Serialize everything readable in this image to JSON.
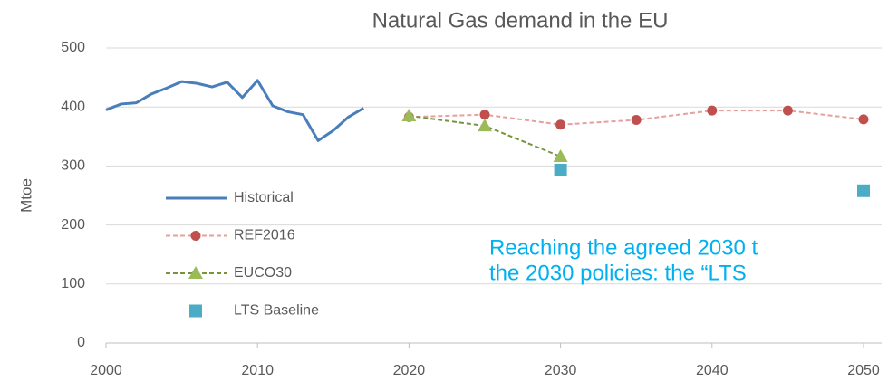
{
  "chart_data": {
    "type": "line",
    "title": "Natural Gas demand in the EU",
    "y_label": "Mtoe",
    "xlim": [
      2000,
      2050
    ],
    "xticks": [
      2000,
      2010,
      2020,
      2030,
      2040,
      2050
    ],
    "ylim": [
      0,
      500
    ],
    "yticks": [
      0,
      100,
      200,
      300,
      400,
      500
    ],
    "grid": true,
    "legend": "center-left",
    "series": [
      {
        "name": "Historical",
        "color": "#4a7ebb",
        "style": "solid",
        "x": [
          2000,
          2001,
          2002,
          2003,
          2004,
          2005,
          2006,
          2007,
          2008,
          2009,
          2010,
          2011,
          2012,
          2013,
          2014,
          2015,
          2016,
          2017
        ],
        "values": [
          395,
          405,
          407,
          422,
          432,
          443,
          440,
          434,
          442,
          416,
          445,
          402,
          392,
          387,
          343,
          360,
          383,
          398
        ]
      },
      {
        "name": "REF2016",
        "color": "#c0504d",
        "line_color": "#e6a09e",
        "style": "dashed",
        "marker": "circle",
        "x": [
          2020,
          2025,
          2030,
          2035,
          2040,
          2045,
          2050
        ],
        "values": [
          383,
          387,
          370,
          378,
          394,
          394,
          379
        ]
      },
      {
        "name": "EUCO30",
        "color": "#9bbb59",
        "line_color": "#77933c",
        "style": "dashed",
        "marker": "triangle",
        "x": [
          2020,
          2025,
          2030
        ],
        "values": [
          385,
          368,
          316
        ]
      },
      {
        "name": "LTS Baseline",
        "color": "#4bacc6",
        "style": "none",
        "marker": "square",
        "x": [
          2030,
          2050
        ],
        "values": [
          293,
          258
        ]
      }
    ],
    "annotation": {
      "color": "#00b0f0",
      "lines": [
        "Reaching the agreed 2030 t",
        "the 2030 policies: the “LTS"
      ]
    }
  }
}
